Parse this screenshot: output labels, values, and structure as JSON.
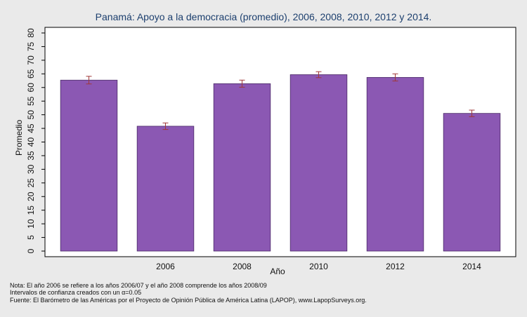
{
  "chart_data": {
    "type": "bar",
    "title": "Panamá: Apoyo a la democracia (promedio), 2006, 2008, 2010, 2012 y 2014.",
    "xlabel": "Año",
    "ylabel": "Promedio",
    "categories": [
      "",
      "2006",
      "2008",
      "2010",
      "2012",
      "2014"
    ],
    "values": [
      62.7,
      45.8,
      61.4,
      64.7,
      63.7,
      50.5
    ],
    "ci_low": [
      61.3,
      44.6,
      60.1,
      63.6,
      62.4,
      49.3
    ],
    "ci_high": [
      64.1,
      47.0,
      62.7,
      65.8,
      65.0,
      51.7
    ],
    "ylim": [
      0,
      80
    ],
    "yticks": [
      0,
      5,
      10,
      15,
      20,
      25,
      30,
      35,
      40,
      45,
      50,
      55,
      60,
      65,
      70,
      75,
      80
    ],
    "grid": false,
    "bar_color": "#8b58b3",
    "errorbar_color": "#a03838"
  },
  "notes": {
    "line1": "Nota: El año 2006 se refiere a los años 2006/07 y el año 2008 comprende los años 2008/09",
    "line2": "Intervalos de confianza creados con un α=0.05",
    "line3": "Fuente: El Barómetro de las Américas por el Proyecto de Opinión Pública de América Latina (LAPOP), www.LapopSurveys.org."
  }
}
